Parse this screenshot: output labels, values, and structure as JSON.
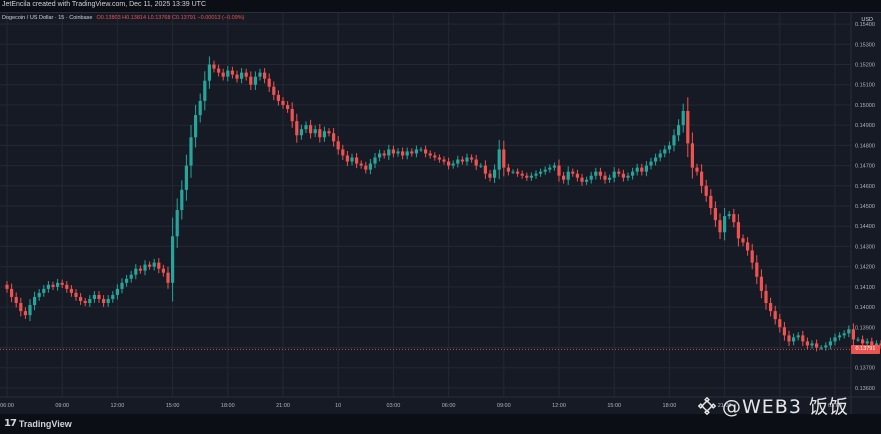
{
  "header": {
    "caption": "JetEncila created with TradingView.com, Dec 11, 2025 13:39 UTC",
    "symbol": "Dogecoin / US Dollar · 15 · Coinbase",
    "ohlc": "O0.13803 H0.13814 L0.13768 C0.13791 −0.00013 (−0.09%)",
    "currency": "USD"
  },
  "last_price": "0.13791",
  "brand": {
    "tv_name": "TradingView",
    "tv_mark": "17",
    "watermark": "@WEB3 饭饭"
  },
  "colors": {
    "up": "#26a69a",
    "down": "#ef5350",
    "background": "#161a25",
    "grid": "#242833"
  },
  "chart_data": {
    "type": "candlestick",
    "title": "",
    "xlabel": "",
    "ylabel": "",
    "ylim": [
      0.13555,
      0.15455
    ],
    "y_ticks": [
      0.154,
      0.153,
      0.152,
      0.151,
      0.15,
      0.149,
      0.148,
      0.147,
      0.146,
      0.145,
      0.144,
      0.143,
      0.142,
      0.141,
      0.14,
      0.139,
      0.138,
      0.137,
      0.136
    ],
    "y_tick_labels": [
      "0.15400",
      "0.15300",
      "0.15200",
      "0.15100",
      "0.15000",
      "0.14900",
      "0.14800",
      "0.14700",
      "0.14600",
      "0.14500",
      "0.14400",
      "0.14300",
      "0.14200",
      "0.14100",
      "0.14000",
      "0.13900",
      "0.13800",
      "0.13700",
      "0.13600"
    ],
    "x_tick_labels": [
      "06:00",
      "09:00",
      "12:00",
      "15:00",
      "18:00",
      "21:00",
      "10",
      "03:00",
      "06:00",
      "09:00",
      "12:00",
      "15:00",
      "18:00",
      "21:00",
      "11",
      "03:00"
    ],
    "x_tick_index": [
      0,
      12,
      24,
      36,
      48,
      60,
      72,
      84,
      96,
      108,
      120,
      132,
      144,
      156,
      168,
      180
    ],
    "grid": true,
    "series_close": [
      0.1409,
      0.1405,
      0.1402,
      0.1398,
      0.1396,
      0.1401,
      0.1405,
      0.1407,
      0.1409,
      0.1411,
      0.141,
      0.1412,
      0.1411,
      0.1409,
      0.1407,
      0.1405,
      0.1403,
      0.1402,
      0.1404,
      0.1406,
      0.1404,
      0.1402,
      0.1404,
      0.1406,
      0.1409,
      0.1412,
      0.1414,
      0.1416,
      0.1419,
      0.1418,
      0.1421,
      0.142,
      0.1422,
      0.1419,
      0.1417,
      0.1412,
      0.1435,
      0.1448,
      0.1458,
      0.147,
      0.1484,
      0.1495,
      0.1502,
      0.1512,
      0.152,
      0.1518,
      0.1516,
      0.1514,
      0.1517,
      0.1515,
      0.1513,
      0.1516,
      0.1514,
      0.151,
      0.1514,
      0.1516,
      0.1513,
      0.1509,
      0.1505,
      0.1502,
      0.15,
      0.1498,
      0.1492,
      0.1485,
      0.1488,
      0.149,
      0.1486,
      0.1488,
      0.1484,
      0.1487,
      0.1486,
      0.1482,
      0.1478,
      0.1475,
      0.1472,
      0.1474,
      0.1471,
      0.147,
      0.1468,
      0.1471,
      0.1474,
      0.1476,
      0.1475,
      0.1478,
      0.1476,
      0.1477,
      0.1475,
      0.1477,
      0.1476,
      0.1478,
      0.1478,
      0.1476,
      0.1475,
      0.1474,
      0.1473,
      0.1472,
      0.147,
      0.1471,
      0.1473,
      0.1472,
      0.1474,
      0.1473,
      0.147,
      0.147,
      0.1466,
      0.1464,
      0.1468,
      0.1478,
      0.1469,
      0.1467,
      0.1467,
      0.1466,
      0.1465,
      0.1464,
      0.1465,
      0.1466,
      0.1467,
      0.1468,
      0.1469,
      0.147,
      0.1465,
      0.1463,
      0.1467,
      0.1466,
      0.1464,
      0.1462,
      0.1463,
      0.1465,
      0.1467,
      0.1465,
      0.1463,
      0.1464,
      0.1467,
      0.1466,
      0.1464,
      0.1465,
      0.1467,
      0.1469,
      0.1467,
      0.147,
      0.1472,
      0.1474,
      0.1476,
      0.1478,
      0.148,
      0.1485,
      0.149,
      0.1497,
      0.1481,
      0.1469,
      0.1467,
      0.146,
      0.1455,
      0.1449,
      0.1443,
      0.1437,
      0.1445,
      0.1446,
      0.1442,
      0.1434,
      0.1432,
      0.1428,
      0.1422,
      0.1415,
      0.1408,
      0.1402,
      0.1398,
      0.1394,
      0.139,
      0.1386,
      0.1383,
      0.1385,
      0.1386,
      0.1383,
      0.1381,
      0.1382,
      0.138,
      0.138,
      0.1381,
      0.1383,
      0.1385,
      0.1386,
      0.1387,
      0.1389,
      0.1384,
      0.1384,
      0.1382,
      0.1383,
      0.1381,
      0.1382,
      0.1381,
      0.138,
      0.1379,
      0.1378,
      0.1379,
      0.138,
      0.1381,
      0.138,
      0.138,
      0.1379,
      0.1381,
      0.138,
      0.1381,
      0.138,
      0.1379,
      0.1378,
      0.138,
      0.1379,
      0.138,
      0.1379,
      0.138,
      0.1379
    ],
    "open_price": 0.1411
  }
}
